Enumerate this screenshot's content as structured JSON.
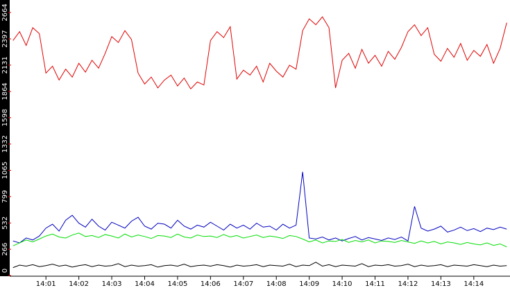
{
  "chart_data": {
    "type": "line",
    "x": [
      0,
      0.2,
      0.4,
      0.6,
      0.8,
      1,
      1.2,
      1.4,
      1.6,
      1.8,
      2,
      2.2,
      2.4,
      2.6,
      2.8,
      3,
      3.2,
      3.4,
      3.6,
      3.8,
      4,
      4.2,
      4.4,
      4.6,
      4.8,
      5,
      5.2,
      5.4,
      5.6,
      5.8,
      6,
      6.2,
      6.4,
      6.6,
      6.8,
      7,
      7.2,
      7.4,
      7.6,
      7.8,
      8,
      8.2,
      8.4,
      8.6,
      8.8,
      9,
      9.2,
      9.4,
      9.6,
      9.8,
      10,
      10.2,
      10.4,
      10.6,
      10.8,
      11,
      11.2,
      11.4,
      11.6,
      11.8,
      12,
      12.2,
      12.4,
      12.6,
      12.8,
      13,
      13.2,
      13.4,
      13.6,
      13.8,
      14,
      14.2,
      14.4,
      14.6,
      14.8,
      15
    ],
    "series": [
      {
        "color": "#e00000",
        "values": [
          2380,
          2470,
          2330,
          2510,
          2450,
          2050,
          2120,
          1980,
          2090,
          2010,
          2150,
          2060,
          2180,
          2100,
          2250,
          2420,
          2360,
          2480,
          2390,
          2050,
          1940,
          2010,
          1900,
          1980,
          2030,
          1920,
          2000,
          1890,
          1960,
          1930,
          2380,
          2470,
          2410,
          2520,
          1990,
          2080,
          2030,
          2120,
          1960,
          2150,
          2070,
          2010,
          2130,
          2090,
          2480,
          2600,
          2540,
          2620,
          2510,
          1900,
          2180,
          2250,
          2100,
          2290,
          2150,
          2230,
          2120,
          2270,
          2190,
          2310,
          2470,
          2540,
          2430,
          2510,
          2240,
          2170,
          2300,
          2210,
          2350,
          2180,
          2280,
          2220,
          2340,
          2150,
          2300,
          2560
        ]
      },
      {
        "color": "#0000c0",
        "values": [
          350,
          330,
          380,
          360,
          400,
          480,
          520,
          450,
          560,
          610,
          530,
          490,
          570,
          500,
          460,
          540,
          510,
          480,
          550,
          590,
          500,
          470,
          530,
          520,
          480,
          560,
          500,
          470,
          510,
          490,
          540,
          500,
          460,
          520,
          480,
          510,
          470,
          530,
          490,
          500,
          460,
          520,
          480,
          510,
          1050,
          380,
          370,
          390,
          360,
          380,
          350,
          375,
          395,
          360,
          385,
          370,
          355,
          380,
          365,
          390,
          350,
          700,
          480,
          450,
          470,
          500,
          440,
          460,
          490,
          455,
          475,
          445,
          480,
          465,
          490,
          470
        ]
      },
      {
        "color": "#00dd00",
        "values": [
          300,
          330,
          360,
          340,
          370,
          400,
          420,
          390,
          380,
          410,
          430,
          395,
          405,
          385,
          415,
          400,
          380,
          420,
          390,
          410,
          395,
          375,
          405,
          400,
          385,
          420,
          390,
          380,
          410,
          395,
          400,
          385,
          415,
          390,
          405,
          380,
          395,
          410,
          385,
          400,
          390,
          375,
          405,
          395,
          370,
          340,
          360,
          330,
          350,
          345,
          365,
          335,
          355,
          340,
          360,
          330,
          350,
          345,
          335,
          355,
          340,
          325,
          350,
          330,
          345,
          320,
          340,
          330,
          315,
          335,
          320,
          310,
          330,
          305,
          320,
          290
        ]
      },
      {
        "color": "#000000",
        "values": [
          80,
          105,
          95,
          110,
          90,
          100,
          115,
          95,
          105,
          85,
          100,
          110,
          90,
          105,
          95,
          100,
          120,
          90,
          105,
          95,
          100,
          110,
          85,
          100,
          105,
          95,
          115,
          90,
          100,
          105,
          95,
          110,
          100,
          85,
          105,
          95,
          100,
          110,
          90,
          105,
          100,
          95,
          115,
          90,
          105,
          100,
          135,
          95,
          110,
          90,
          105,
          100,
          95,
          120,
          90,
          105,
          100,
          110,
          95,
          100,
          115,
          90,
          105,
          95,
          100,
          110,
          90,
          105,
          100,
          95,
          110,
          100,
          90,
          105,
          95,
          100
        ]
      }
    ],
    "xlim": [
      -0.1,
      15.1
    ],
    "xticks": [
      {
        "value": 1,
        "label": "14:01"
      },
      {
        "value": 2,
        "label": "14:02"
      },
      {
        "value": 3,
        "label": "14:03"
      },
      {
        "value": 4,
        "label": "14:04"
      },
      {
        "value": 5,
        "label": "14:05"
      },
      {
        "value": 6,
        "label": "14:06"
      },
      {
        "value": 7,
        "label": "14:07"
      },
      {
        "value": 8,
        "label": "14:08"
      },
      {
        "value": 9,
        "label": "14:09"
      },
      {
        "value": 10,
        "label": "14:10"
      },
      {
        "value": 11,
        "label": "14:11"
      },
      {
        "value": 12,
        "label": "14:12"
      },
      {
        "value": 13,
        "label": "14:13"
      },
      {
        "value": 14,
        "label": "14:14"
      }
    ],
    "ylim": [
      0,
      2664
    ],
    "yticks": [
      0,
      266,
      532,
      799,
      1065,
      1332,
      1598,
      1864,
      2131,
      2397,
      2664
    ]
  }
}
